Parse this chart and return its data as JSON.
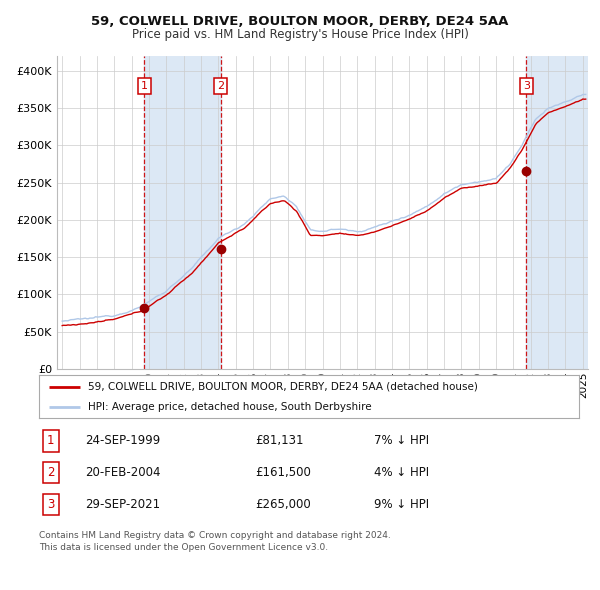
{
  "title1": "59, COLWELL DRIVE, BOULTON MOOR, DERBY, DE24 5AA",
  "title2": "Price paid vs. HM Land Registry's House Price Index (HPI)",
  "ylim": [
    0,
    420000
  ],
  "yticks": [
    0,
    50000,
    100000,
    150000,
    200000,
    250000,
    300000,
    350000,
    400000
  ],
  "ytick_labels": [
    "£0",
    "£50K",
    "£100K",
    "£150K",
    "£200K",
    "£250K",
    "£300K",
    "£350K",
    "£400K"
  ],
  "xlim_start": 1994.7,
  "xlim_end": 2025.3,
  "hpi_color": "#b0c8e8",
  "price_color": "#cc0000",
  "dot_color": "#990000",
  "shade_color": "#dce8f5",
  "background_color": "#ffffff",
  "grid_color": "#cccccc",
  "sale1_date": 1999.73,
  "sale1_price": 81131,
  "sale2_date": 2004.13,
  "sale2_price": 161500,
  "sale3_date": 2021.75,
  "sale3_price": 265000,
  "legend_label_price": "59, COLWELL DRIVE, BOULTON MOOR, DERBY, DE24 5AA (detached house)",
  "legend_label_hpi": "HPI: Average price, detached house, South Derbyshire",
  "table_data": [
    {
      "num": "1",
      "date": "24-SEP-1999",
      "price": "£81,131",
      "note": "7% ↓ HPI"
    },
    {
      "num": "2",
      "date": "20-FEB-2004",
      "price": "£161,500",
      "note": "4% ↓ HPI"
    },
    {
      "num": "3",
      "date": "29-SEP-2021",
      "price": "£265,000",
      "note": "9% ↓ HPI"
    }
  ],
  "footer_text1": "Contains HM Land Registry data © Crown copyright and database right 2024.",
  "footer_text2": "This data is licensed under the Open Government Licence v3.0.",
  "hpi_keypoints_t": [
    1995.0,
    1996.5,
    1998.0,
    1999.5,
    2001.0,
    2002.5,
    2004.0,
    2005.5,
    2007.0,
    2007.8,
    2008.5,
    2009.3,
    2010.0,
    2011.0,
    2012.0,
    2013.0,
    2014.0,
    2015.0,
    2016.0,
    2017.0,
    2018.0,
    2019.0,
    2020.0,
    2020.8,
    2021.5,
    2022.3,
    2023.0,
    2024.0,
    2025.0
  ],
  "hpi_keypoints_v": [
    64000,
    67000,
    72000,
    83000,
    105000,
    135000,
    175000,
    195000,
    228000,
    232000,
    218000,
    185000,
    185000,
    188000,
    184000,
    190000,
    198000,
    207000,
    218000,
    235000,
    248000,
    252000,
    255000,
    275000,
    300000,
    335000,
    350000,
    358000,
    368000
  ]
}
